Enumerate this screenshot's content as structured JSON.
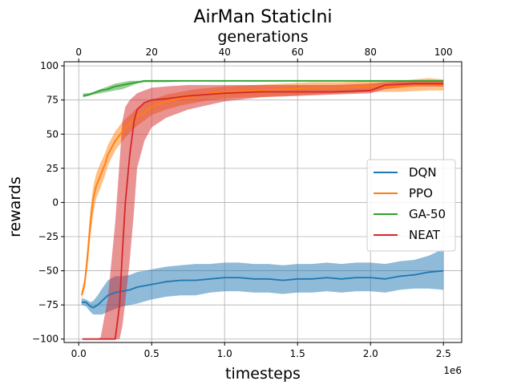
{
  "chart_data": {
    "type": "line",
    "title": "AirMan StaticIni",
    "xlabel": "timesteps",
    "ylabel": "rewards",
    "x_offset_label": "1e6",
    "secondary_xlabel": "generations",
    "xlim": [
      -0.1,
      2.625
    ],
    "ylim": [
      -102.5,
      103
    ],
    "secondary_xlim": [
      -4,
      105
    ],
    "x_ticks": [
      {
        "value": 0.0,
        "label": "0.0"
      },
      {
        "value": 0.5,
        "label": "0.5"
      },
      {
        "value": 1.0,
        "label": "1.0"
      },
      {
        "value": 1.5,
        "label": "1.5"
      },
      {
        "value": 2.0,
        "label": "2.0"
      },
      {
        "value": 2.5,
        "label": "2.5"
      }
    ],
    "y_ticks": [
      {
        "value": 100,
        "label": "100"
      },
      {
        "value": 75,
        "label": "75"
      },
      {
        "value": 50,
        "label": "50"
      },
      {
        "value": 25,
        "label": "25"
      },
      {
        "value": 0,
        "label": "0"
      },
      {
        "value": -25,
        "label": "−25"
      },
      {
        "value": -50,
        "label": "−50"
      },
      {
        "value": -75,
        "label": "−75"
      },
      {
        "value": -100,
        "label": "−100"
      }
    ],
    "secondary_x_ticks": [
      {
        "value": 0,
        "label": "0"
      },
      {
        "value": 20,
        "label": "20"
      },
      {
        "value": 40,
        "label": "40"
      },
      {
        "value": 60,
        "label": "60"
      },
      {
        "value": 80,
        "label": "80"
      },
      {
        "value": 100,
        "label": "100"
      }
    ],
    "grid": true,
    "legend_position": "center-right",
    "series": [
      {
        "name": "DQN",
        "color": "#1f77b4",
        "x": [
          0.02,
          0.05,
          0.08,
          0.1,
          0.13,
          0.16,
          0.2,
          0.25,
          0.3,
          0.35,
          0.4,
          0.5,
          0.6,
          0.7,
          0.8,
          0.9,
          1.0,
          1.1,
          1.2,
          1.3,
          1.4,
          1.5,
          1.6,
          1.7,
          1.8,
          1.9,
          2.0,
          2.1,
          2.2,
          2.3,
          2.4,
          2.5
        ],
        "y": [
          -73,
          -73,
          -76,
          -77,
          -75,
          -72,
          -68,
          -66,
          -65,
          -64,
          -62,
          -60,
          -58,
          -57,
          -57,
          -56,
          -55,
          -55,
          -56,
          -56,
          -57,
          -56,
          -56,
          -55,
          -56,
          -55,
          -55,
          -56,
          -54,
          -53,
          -51,
          -50
        ],
        "lower": [
          -75,
          -76,
          -80,
          -82,
          -82,
          -82,
          -80,
          -78,
          -76,
          -75,
          -74,
          -71,
          -69,
          -68,
          -68,
          -66,
          -65,
          -65,
          -66,
          -66,
          -67,
          -66,
          -66,
          -65,
          -66,
          -65,
          -65,
          -66,
          -64,
          -63,
          -63,
          -64
        ],
        "upper": [
          -70,
          -71,
          -73,
          -72,
          -68,
          -63,
          -57,
          -54,
          -54,
          -53,
          -51,
          -49,
          -47,
          -46,
          -45,
          -45,
          -44,
          -44,
          -45,
          -45,
          -46,
          -45,
          -45,
          -44,
          -45,
          -44,
          -44,
          -45,
          -43,
          -42,
          -39,
          -34
        ]
      },
      {
        "name": "PPO",
        "color": "#ff7f0e",
        "x": [
          0.02,
          0.04,
          0.06,
          0.08,
          0.1,
          0.12,
          0.15,
          0.18,
          0.2,
          0.25,
          0.3,
          0.35,
          0.4,
          0.45,
          0.5,
          0.6,
          0.7,
          0.8,
          0.9,
          1.0,
          1.2,
          1.4,
          1.6,
          1.8,
          2.0,
          2.2,
          2.4,
          2.5
        ],
        "y": [
          -68,
          -60,
          -40,
          -15,
          3,
          12,
          20,
          28,
          35,
          45,
          52,
          58,
          63,
          66,
          70,
          74,
          76,
          78,
          80,
          81,
          82,
          83,
          84,
          84,
          85,
          85,
          86,
          86
        ],
        "lower": [
          -70,
          -64,
          -48,
          -25,
          -8,
          3,
          11,
          20,
          27,
          38,
          45,
          51,
          56,
          60,
          64,
          68,
          71,
          73,
          75,
          76,
          77,
          78,
          79,
          80,
          81,
          81,
          82,
          82
        ],
        "upper": [
          -65,
          -55,
          -32,
          -5,
          12,
          21,
          29,
          36,
          42,
          52,
          59,
          64,
          69,
          72,
          75,
          79,
          81,
          83,
          84,
          85,
          86,
          87,
          88,
          88,
          89,
          89,
          91,
          90
        ]
      },
      {
        "name": "GA-50",
        "color": "#2ca02c",
        "x": [
          0.03,
          0.07,
          0.1,
          0.15,
          0.2,
          0.25,
          0.3,
          0.35,
          0.4,
          0.45,
          0.5,
          0.6,
          0.8,
          1.0,
          1.5,
          2.0,
          2.5
        ],
        "y": [
          78,
          79,
          80,
          82,
          83,
          85,
          86,
          87,
          88,
          89,
          89,
          89,
          89,
          89,
          89,
          89,
          89
        ],
        "lower": [
          77,
          78,
          79,
          80,
          81,
          82,
          83,
          85,
          87,
          88,
          88,
          88,
          89,
          89,
          89,
          89,
          89
        ],
        "upper": [
          80,
          80,
          81,
          83,
          85,
          87,
          88,
          89,
          89,
          89,
          89,
          89,
          89,
          89,
          89,
          89,
          89
        ]
      },
      {
        "name": "NEAT",
        "color": "#d62728",
        "x": [
          0.025,
          0.1,
          0.15,
          0.2,
          0.25,
          0.28,
          0.3,
          0.32,
          0.35,
          0.38,
          0.4,
          0.45,
          0.5,
          0.6,
          0.75,
          1.0,
          1.25,
          1.5,
          1.75,
          2.0,
          2.1,
          2.3,
          2.5
        ],
        "y": [
          -100,
          -100,
          -100,
          -100,
          -100,
          -75,
          -35,
          0,
          35,
          60,
          68,
          73,
          75,
          76,
          78,
          80,
          81,
          81,
          81,
          82,
          86,
          87,
          87
        ],
        "lower": [
          -100,
          -100,
          -100,
          -100,
          -100,
          -100,
          -90,
          -72,
          -42,
          -5,
          25,
          45,
          55,
          62,
          68,
          74,
          77,
          78,
          79,
          80,
          83,
          85,
          85
        ],
        "upper": [
          -100,
          -100,
          -99,
          -70,
          -15,
          30,
          60,
          70,
          75,
          78,
          80,
          82,
          84,
          85,
          86,
          86,
          86,
          86,
          86,
          87,
          88,
          89,
          89
        ]
      }
    ]
  }
}
